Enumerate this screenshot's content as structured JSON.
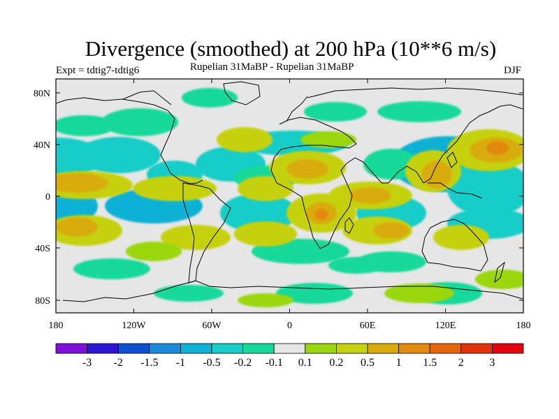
{
  "title": "Divergence (smoothed) at 200 hPa (10**6 m/s)",
  "experiment": "Expt = tdtig7-tdtig6",
  "subtitle": "Rupelian  31MaBP - Rupelian  31MaBP",
  "season": "DJF",
  "lat_labels": [
    "80N",
    "40N",
    "0",
    "40S",
    "80S"
  ],
  "lon_labels": [
    "180",
    "120W",
    "60W",
    "0",
    "60E",
    "120E",
    "180"
  ],
  "colorbar": {
    "labels": [
      "-3",
      "-2",
      "-1.5",
      "-1",
      "-0.5",
      "-0.2",
      "-0.1",
      "0.1",
      "0.2",
      "0.5",
      "1",
      "1.5",
      "2",
      "3"
    ],
    "colors": [
      "#7d0fd9",
      "#2e15d6",
      "#0f4fd1",
      "#1b8ad9",
      "#0fb1d5",
      "#19cdc8",
      "#17d99a",
      "#e6e6e6",
      "#9ad70f",
      "#c6d10f",
      "#d9ac0c",
      "#e38a0f",
      "#e3650c",
      "#e0350c",
      "#e0050c"
    ]
  },
  "background_color": "#e6e6e6"
}
